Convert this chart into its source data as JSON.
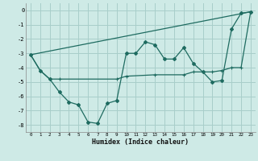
{
  "xlabel": "Humidex (Indice chaleur)",
  "xlim": [
    -0.5,
    23.5
  ],
  "ylim": [
    -8.5,
    0.5
  ],
  "yticks": [
    0,
    -1,
    -2,
    -3,
    -4,
    -5,
    -6,
    -7,
    -8
  ],
  "xticks": [
    0,
    1,
    2,
    3,
    4,
    5,
    6,
    7,
    8,
    9,
    10,
    11,
    12,
    13,
    14,
    15,
    16,
    17,
    18,
    19,
    20,
    21,
    22,
    23
  ],
  "bg_color": "#ceeae6",
  "grid_color": "#a8ceca",
  "line_color": "#1e6b60",
  "line1_x": [
    0,
    1,
    2,
    3,
    4,
    5,
    6,
    7,
    8,
    9,
    10,
    11,
    12,
    13,
    14,
    15,
    16,
    17,
    18,
    19,
    20,
    21,
    22,
    23
  ],
  "line1_y": [
    -3.1,
    -4.2,
    -4.8,
    -5.7,
    -6.4,
    -6.6,
    -7.8,
    -7.9,
    -6.5,
    -6.3,
    -3.0,
    -3.0,
    -2.2,
    -2.4,
    -3.4,
    -3.4,
    -2.6,
    -3.7,
    -4.3,
    -5.0,
    -4.9,
    -1.3,
    -0.2,
    -0.1
  ],
  "line2_x": [
    0,
    1,
    2,
    3,
    9,
    10,
    13,
    16,
    17,
    18,
    19,
    20,
    21,
    22,
    23
  ],
  "line2_y": [
    -3.1,
    -4.2,
    -4.8,
    -4.8,
    -4.8,
    -4.6,
    -4.5,
    -4.5,
    -4.3,
    -4.3,
    -4.3,
    -4.2,
    -4.0,
    -4.0,
    -0.1
  ],
  "line3_x": [
    0,
    23
  ],
  "line3_y": [
    -3.1,
    -0.1
  ]
}
